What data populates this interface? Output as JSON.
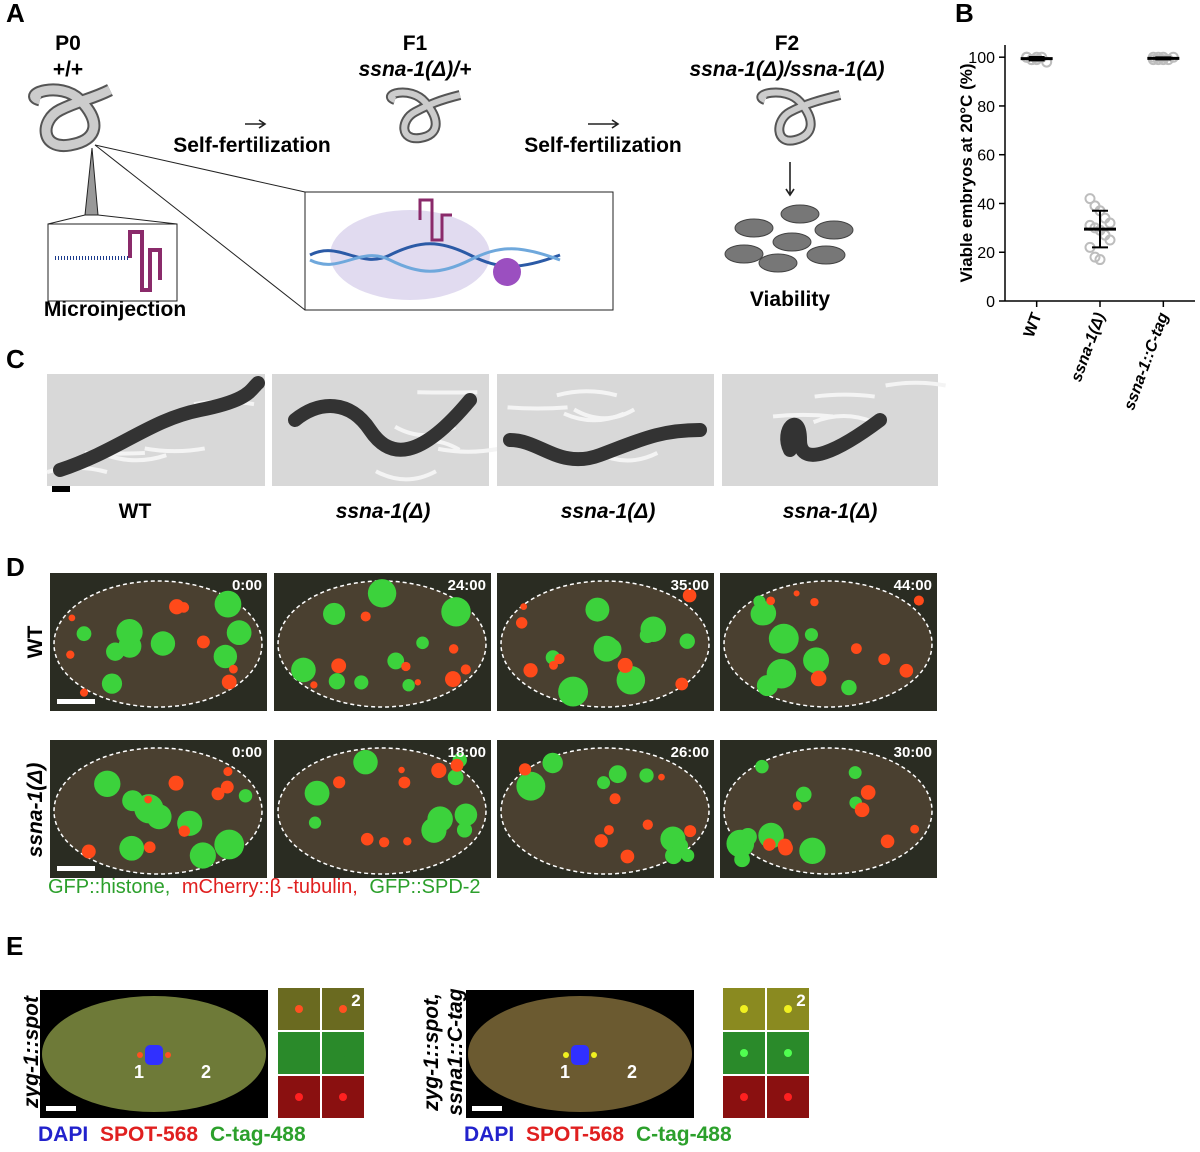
{
  "panel_letters": [
    "A",
    "B",
    "C",
    "D",
    "E"
  ],
  "panel_a": {
    "generations": [
      {
        "label": "P0",
        "genotype": "+/+"
      },
      {
        "label": "F1",
        "genotype": "ssna-1(Δ)/+"
      },
      {
        "label": "F2",
        "genotype": "ssna-1(Δ)/ssna-1(Δ)"
      }
    ],
    "steps": [
      "Self-fertilization",
      "Self-fertilization"
    ],
    "inset_label": "Microinjection",
    "outcome": "Viability"
  },
  "chart_data": {
    "type": "scatter",
    "ylabel": "Viable embryos at 20°C (%)",
    "categories": [
      "WT",
      "ssna-1(Δ)",
      "ssna-1::C-tag"
    ],
    "groups": [
      {
        "values": [
          100,
          99,
          99,
          100,
          98,
          100,
          99,
          100
        ],
        "mean": 99.4,
        "sd": 0.7
      },
      {
        "values": [
          42,
          39,
          37,
          34,
          32,
          31,
          30,
          29,
          27,
          25,
          22,
          18,
          17
        ],
        "mean": 29.5,
        "sd": 7.5
      },
      {
        "values": [
          100,
          99,
          100,
          99,
          100,
          99,
          100,
          99
        ],
        "mean": 99.5,
        "sd": 0.4
      }
    ],
    "color": "#bdbdbd",
    "ylim": [
      0,
      105
    ],
    "yticks": [
      0,
      20,
      40,
      60,
      80,
      100
    ]
  },
  "panel_c": {
    "labels": [
      "WT",
      "ssna-1(Δ)",
      "ssna-1(Δ)",
      "ssna-1(Δ)"
    ]
  },
  "panel_d": {
    "row_labels": [
      "WT",
      "ssna-1(Δ)"
    ],
    "timestamps": [
      [
        "0:00",
        "24:00",
        "35:00",
        "44:00"
      ],
      [
        "0:00",
        "18:00",
        "26:00",
        "30:00"
      ]
    ],
    "legend": [
      "GFP::histone,",
      "mCherry::β -tubulin,",
      "GFP::SPD-2"
    ]
  },
  "panel_e": {
    "groups": [
      {
        "label": [
          "zyg-1::spot"
        ],
        "centrosome_labels": [
          "1",
          "2"
        ],
        "inset_label": "2"
      },
      {
        "label": [
          "zyg-1::spot,",
          "ssna1::C-tag"
        ],
        "centrosome_labels": [
          "1",
          "2"
        ],
        "inset_label": "2"
      }
    ],
    "legend": [
      "DAPI",
      "SPOT-568",
      "C-tag-488"
    ]
  }
}
